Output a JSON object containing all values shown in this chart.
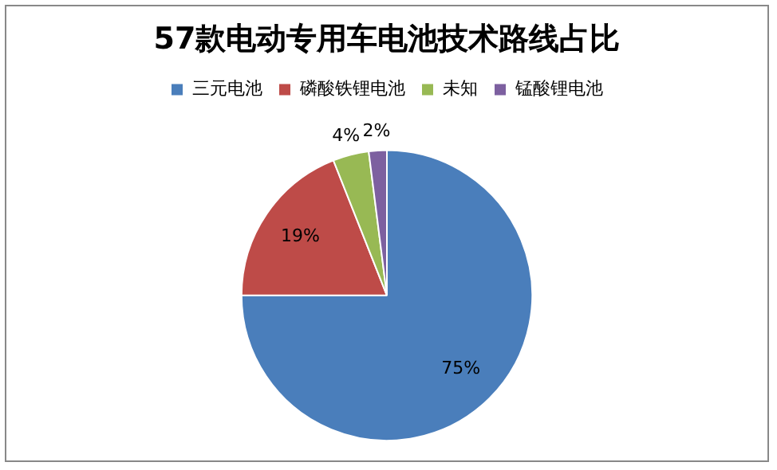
{
  "chart_data": {
    "type": "pie",
    "title": "57款电动专用车电池技术路线占比",
    "categories": [
      "三元电池",
      "磷酸铁锂电池",
      "未知",
      "锰酸锂电池"
    ],
    "values": [
      75,
      19,
      4,
      2
    ],
    "colors": [
      "#4a7ebb",
      "#be4b48",
      "#98b954",
      "#7d60a0"
    ],
    "value_labels": [
      "75%",
      "19%",
      "4%",
      "2%"
    ],
    "legend": "top"
  }
}
